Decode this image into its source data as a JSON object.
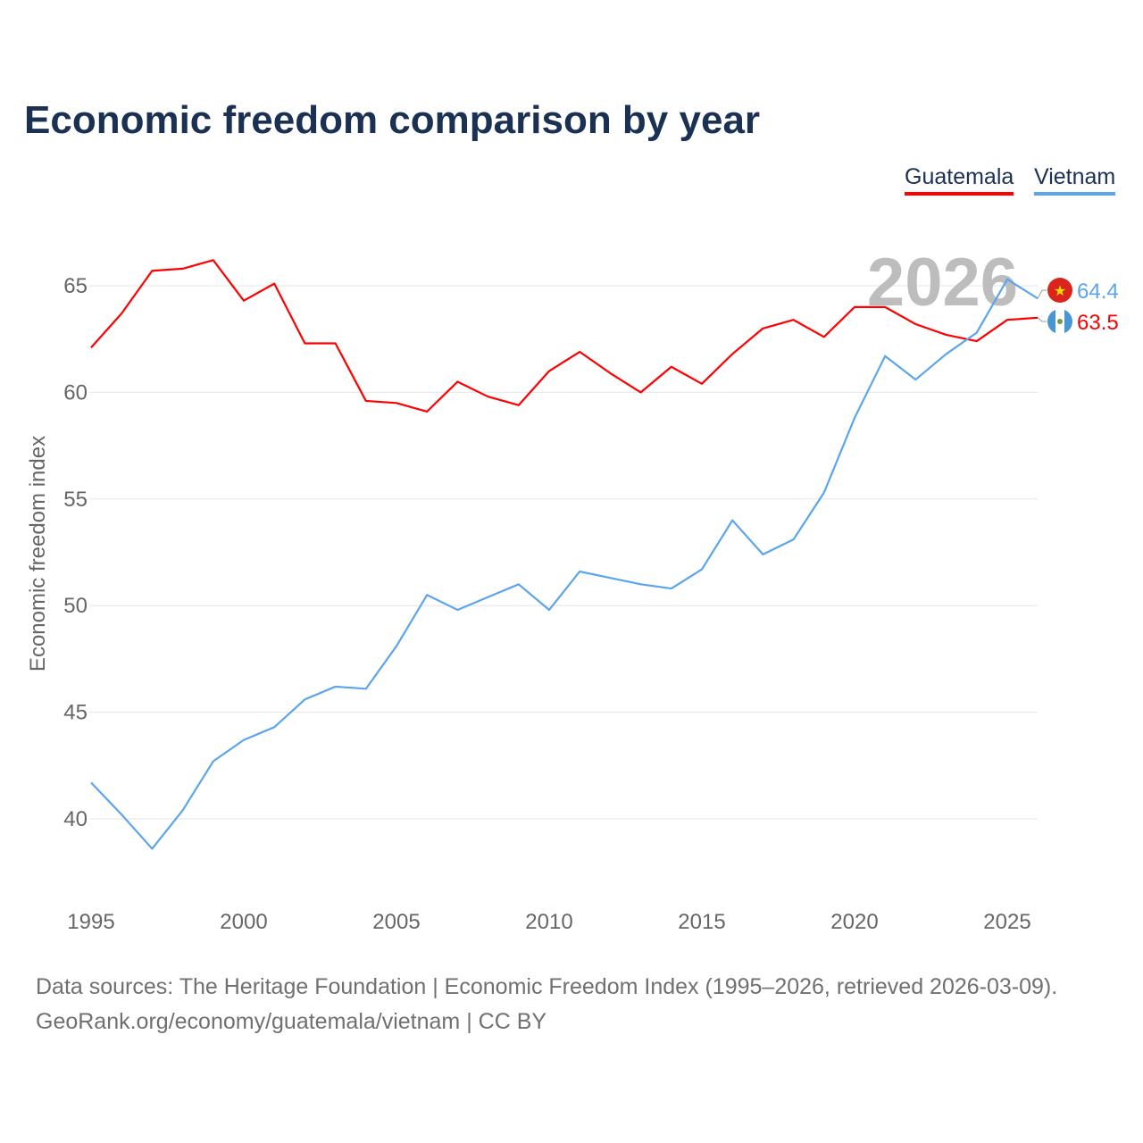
{
  "chart_data": {
    "type": "line",
    "title": "Economic freedom comparison by year",
    "xlabel": "",
    "ylabel": "Economic freedom index",
    "xlim": [
      1995,
      2026
    ],
    "ylim": [
      36.3,
      67.5
    ],
    "x_ticks": [
      1995,
      2000,
      2005,
      2010,
      2015,
      2020,
      2025
    ],
    "y_ticks": [
      40,
      45,
      50,
      55,
      60,
      65
    ],
    "grid": true,
    "legend_position": "top-right",
    "year_label": "2026",
    "x": [
      1995,
      1996,
      1997,
      1998,
      1999,
      2000,
      2001,
      2002,
      2003,
      2004,
      2005,
      2006,
      2007,
      2008,
      2009,
      2010,
      2011,
      2012,
      2013,
      2014,
      2015,
      2016,
      2017,
      2018,
      2019,
      2020,
      2021,
      2022,
      2023,
      2024,
      2025,
      2026
    ],
    "series": [
      {
        "name": "Guatemala",
        "color": "#ff0000",
        "end_label": "63.5",
        "values": [
          62.1,
          63.7,
          65.7,
          65.8,
          66.2,
          64.3,
          65.1,
          62.3,
          62.3,
          59.6,
          59.5,
          59.1,
          60.5,
          59.8,
          59.4,
          61.0,
          61.9,
          60.9,
          60.0,
          61.2,
          60.4,
          61.8,
          63.0,
          63.4,
          62.6,
          64.0,
          64.0,
          63.2,
          62.7,
          62.4,
          63.4,
          63.5
        ]
      },
      {
        "name": "Vietnam",
        "color": "#5ba4ee",
        "end_label": "64.4",
        "values": [
          41.7,
          40.2,
          38.6,
          40.4,
          42.7,
          43.7,
          44.3,
          45.6,
          46.2,
          46.1,
          48.1,
          50.5,
          49.8,
          50.4,
          51.0,
          49.8,
          51.6,
          51.3,
          51.0,
          50.8,
          51.7,
          54.0,
          52.4,
          53.1,
          55.3,
          58.8,
          61.7,
          60.6,
          61.8,
          62.8,
          65.3,
          64.4
        ]
      }
    ]
  },
  "footer": {
    "line1": "Data sources: The Heritage Foundation | Economic Freedom Index (1995–2026, retrieved 2026-03-09).",
    "line2": "GeoRank.org/economy/guatemala/vietnam | CC BY"
  }
}
